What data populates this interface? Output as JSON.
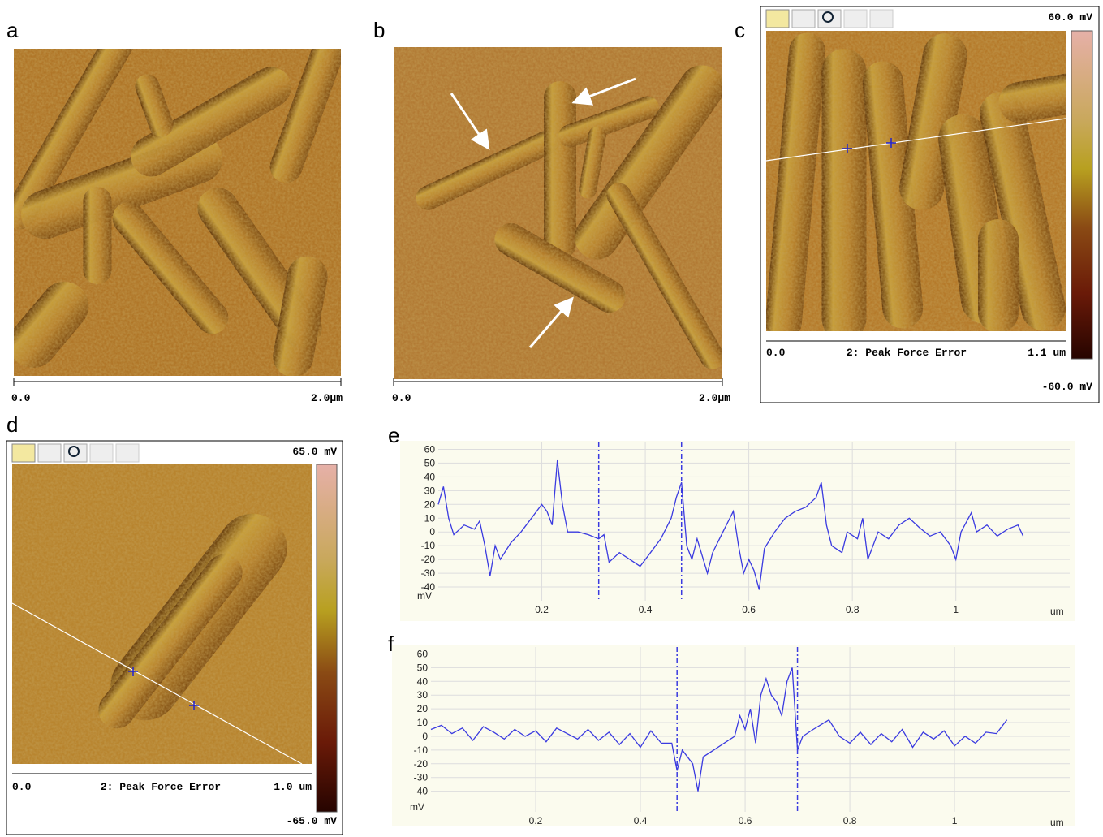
{
  "panels": [
    {
      "label": "a",
      "scale_start": "0.0",
      "scale_end": "2.0μm"
    },
    {
      "label": "b",
      "scale_start": "0.0",
      "scale_end": "2.0μm"
    },
    {
      "label": "c",
      "scale_max": "60.0 mV",
      "scale_start": "0.0",
      "channel": "2: Peak Force Error",
      "scale_end": "1.1 um",
      "scale_min": "-60.0 mV"
    },
    {
      "label": "d",
      "scale_max": "65.0 mV",
      "scale_start": "0.0",
      "channel": "2: Peak Force Error",
      "scale_end": "1.0 um",
      "scale_min": "-65.0 mV"
    }
  ],
  "chart_data": [
    {
      "type": "line",
      "label": "e",
      "xlabel": "um",
      "ylabel": "mV",
      "color": "#3a3ae0",
      "grid": true,
      "xlim": [
        0,
        1.22
      ],
      "ylim": [
        -50,
        65
      ],
      "xticks": [
        0.2,
        0.4,
        0.6,
        0.8,
        1
      ],
      "yticks": [
        -40,
        -30,
        -20,
        -10,
        0,
        10,
        20,
        30,
        40,
        50,
        60
      ],
      "cursors": [
        0.31,
        0.47
      ],
      "x": [
        0,
        0.01,
        0.02,
        0.03,
        0.05,
        0.07,
        0.08,
        0.09,
        0.1,
        0.11,
        0.12,
        0.14,
        0.16,
        0.18,
        0.2,
        0.21,
        0.22,
        0.23,
        0.24,
        0.25,
        0.27,
        0.29,
        0.31,
        0.32,
        0.33,
        0.35,
        0.37,
        0.39,
        0.41,
        0.43,
        0.45,
        0.46,
        0.47,
        0.48,
        0.49,
        0.5,
        0.52,
        0.53,
        0.55,
        0.57,
        0.58,
        0.59,
        0.6,
        0.61,
        0.62,
        0.63,
        0.65,
        0.67,
        0.69,
        0.71,
        0.73,
        0.74,
        0.75,
        0.76,
        0.78,
        0.79,
        0.81,
        0.82,
        0.83,
        0.85,
        0.87,
        0.89,
        0.91,
        0.93,
        0.95,
        0.97,
        0.99,
        1.0,
        1.01,
        1.03,
        1.04,
        1.06,
        1.08,
        1.1,
        1.12,
        1.13
      ],
      "values": [
        20,
        33,
        10,
        -2,
        5,
        2,
        8,
        -10,
        -32,
        -10,
        -20,
        -8,
        0,
        10,
        20,
        15,
        5,
        52,
        20,
        0,
        0,
        -2,
        -5,
        -2,
        -22,
        -15,
        -20,
        -25,
        -15,
        -5,
        10,
        25,
        36,
        -10,
        -20,
        -5,
        -30,
        -15,
        0,
        15,
        -10,
        -30,
        -20,
        -28,
        -42,
        -12,
        0,
        10,
        15,
        18,
        25,
        36,
        5,
        -10,
        -15,
        0,
        -5,
        10,
        -20,
        0,
        -5,
        5,
        10,
        3,
        -3,
        0,
        -10,
        -20,
        0,
        14,
        0,
        5,
        -3,
        2,
        5,
        -3
      ]
    },
    {
      "type": "line",
      "label": "f",
      "xlabel": "um",
      "ylabel": "mV",
      "color": "#3a3ae0",
      "grid": true,
      "xlim": [
        0,
        1.22
      ],
      "ylim": [
        -55,
        65
      ],
      "xticks": [
        0.2,
        0.4,
        0.6,
        0.8,
        1
      ],
      "yticks": [
        -40,
        -30,
        -20,
        -10,
        0,
        10,
        20,
        30,
        40,
        50,
        60
      ],
      "cursors": [
        0.47,
        0.7
      ],
      "x": [
        0,
        0.02,
        0.04,
        0.06,
        0.08,
        0.1,
        0.12,
        0.14,
        0.16,
        0.18,
        0.2,
        0.22,
        0.24,
        0.26,
        0.28,
        0.3,
        0.32,
        0.34,
        0.36,
        0.38,
        0.4,
        0.42,
        0.44,
        0.46,
        0.47,
        0.48,
        0.5,
        0.51,
        0.52,
        0.54,
        0.56,
        0.58,
        0.59,
        0.6,
        0.61,
        0.62,
        0.63,
        0.64,
        0.65,
        0.66,
        0.67,
        0.68,
        0.69,
        0.7,
        0.71,
        0.73,
        0.76,
        0.78,
        0.8,
        0.82,
        0.84,
        0.86,
        0.88,
        0.9,
        0.92,
        0.94,
        0.96,
        0.98,
        1.0,
        1.02,
        1.04,
        1.06,
        1.08,
        1.1
      ],
      "values": [
        5,
        8,
        2,
        6,
        -3,
        7,
        3,
        -2,
        5,
        0,
        4,
        -4,
        6,
        2,
        -2,
        5,
        -3,
        3,
        -6,
        2,
        -8,
        4,
        -5,
        -5,
        -25,
        -10,
        -20,
        -40,
        -15,
        -10,
        -5,
        0,
        15,
        5,
        20,
        -5,
        30,
        42,
        30,
        25,
        15,
        40,
        50,
        -10,
        0,
        5,
        12,
        0,
        -5,
        3,
        -6,
        2,
        -4,
        5,
        -8,
        3,
        -2,
        4,
        -7,
        0,
        -5,
        3,
        2,
        12
      ]
    }
  ]
}
